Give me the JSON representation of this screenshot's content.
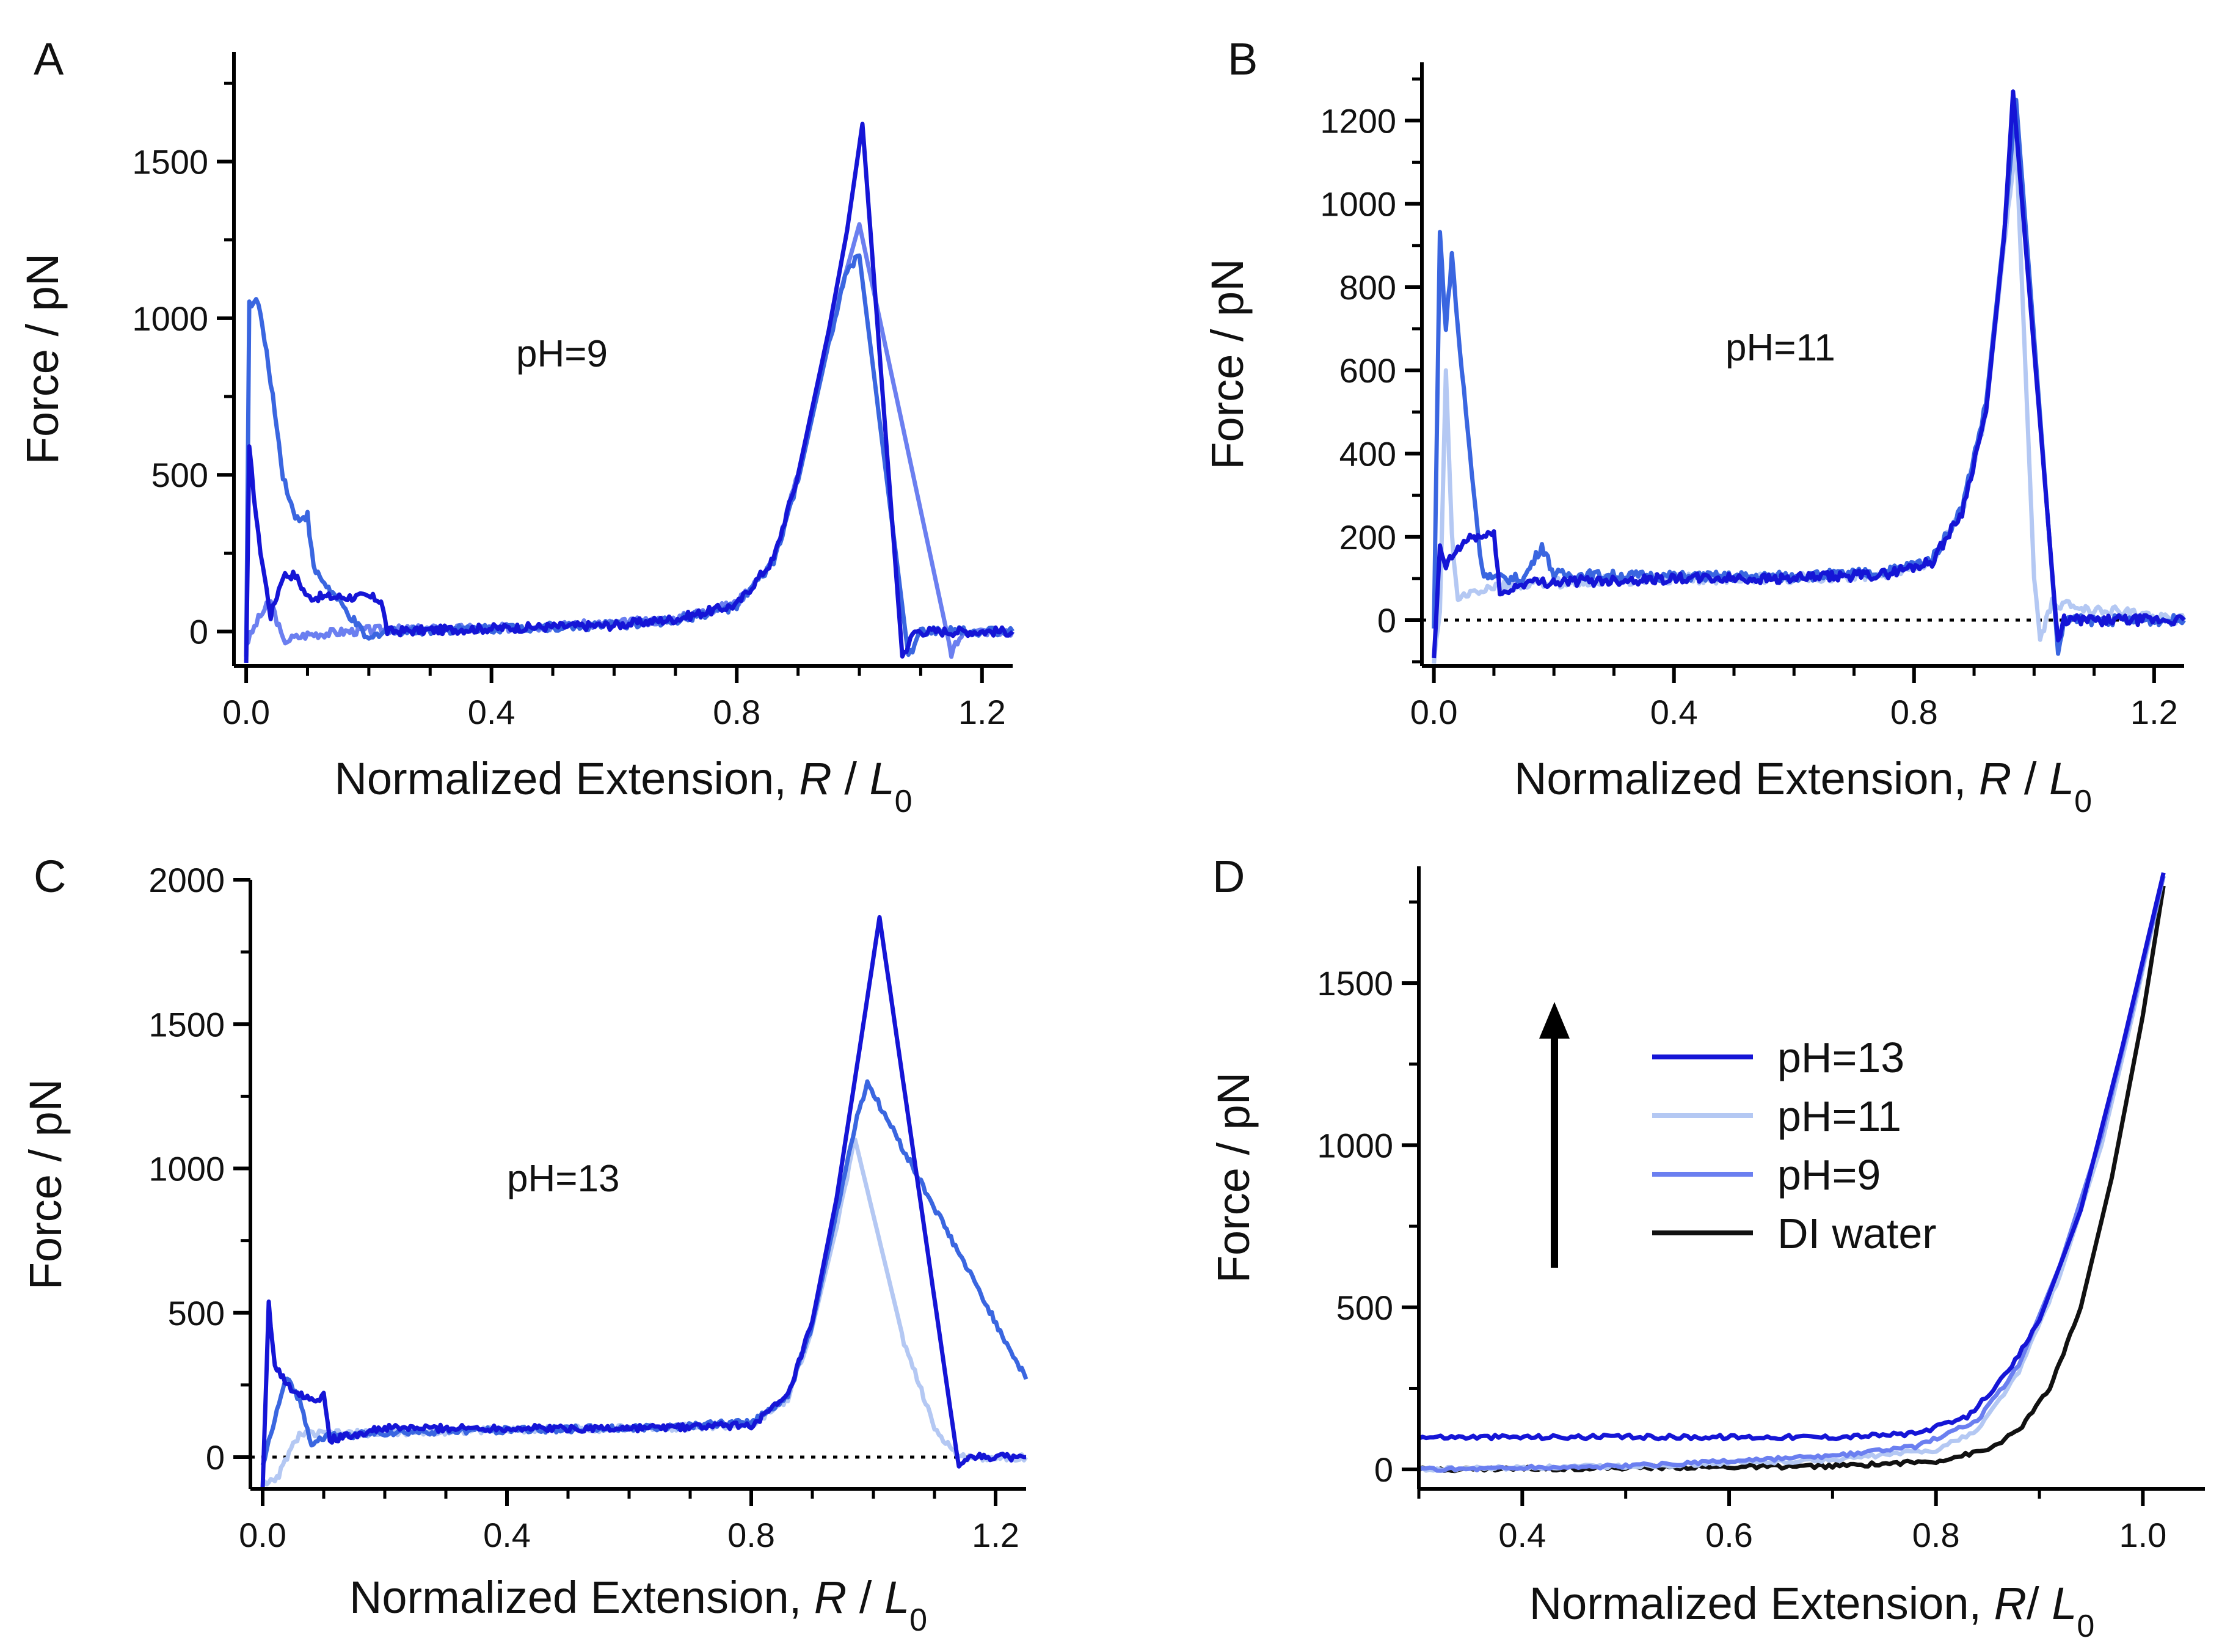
{
  "figure": {
    "colors": {
      "pH13": "#1515d6",
      "pH11": "#b4c8f3",
      "pH9": "#6b7ff0",
      "pH11_mid": "#3a66e0",
      "DI": "#111111",
      "axis": "#000000"
    }
  },
  "chart_data": [
    {
      "panel": "A",
      "type": "line",
      "annotation": "pH=9",
      "xlabel": {
        "main": "Normalized Extension, ",
        "var1": "R",
        "sep": " / ",
        "var2": "L",
        "sub": "0"
      },
      "ylabel": "Force / pN",
      "xlim": [
        -0.02,
        1.25
      ],
      "ylim": [
        -110,
        1850
      ],
      "xticks": [
        0.0,
        0.4,
        0.8,
        1.2
      ],
      "xtick_labels": [
        "0.0",
        "0.4",
        "0.8",
        "1.2"
      ],
      "yticks": [
        0,
        500,
        1000,
        1500
      ],
      "ytick_labels": [
        "0",
        "500",
        "1000",
        "1500"
      ],
      "zero_line": false,
      "series": [
        {
          "name": "trace-1",
          "color": "#6b7ff0",
          "noise": 14,
          "points": [
            [
              0,
              -40
            ],
            [
              0.02,
              40
            ],
            [
              0.04,
              100
            ],
            [
              0.06,
              -30
            ],
            [
              0.1,
              -10
            ],
            [
              0.2,
              5
            ],
            [
              0.4,
              10
            ],
            [
              0.6,
              25
            ],
            [
              0.7,
              40
            ],
            [
              0.8,
              90
            ],
            [
              0.86,
              230
            ],
            [
              0.9,
              500
            ],
            [
              0.95,
              950
            ],
            [
              1.0,
              1300
            ],
            [
              1.15,
              -70
            ],
            [
              1.17,
              0
            ],
            [
              1.25,
              0
            ]
          ]
        },
        {
          "name": "trace-2",
          "color": "#3a66e0",
          "noise": 14,
          "points": [
            [
              0,
              -80
            ],
            [
              0.005,
              1050
            ],
            [
              0.02,
              1050
            ],
            [
              0.04,
              800
            ],
            [
              0.06,
              500
            ],
            [
              0.08,
              360
            ],
            [
              0.1,
              370
            ],
            [
              0.11,
              200
            ],
            [
              0.2,
              -30
            ],
            [
              0.22,
              0
            ],
            [
              0.4,
              10
            ],
            [
              0.6,
              20
            ],
            [
              0.7,
              35
            ],
            [
              0.8,
              80
            ],
            [
              0.86,
              220
            ],
            [
              0.9,
              480
            ],
            [
              0.95,
              920
            ],
            [
              0.98,
              1150
            ],
            [
              1.0,
              1200
            ],
            [
              1.08,
              -80
            ],
            [
              1.1,
              0
            ],
            [
              1.25,
              0
            ]
          ]
        },
        {
          "name": "trace-3",
          "color": "#1515d6",
          "noise": 14,
          "points": [
            [
              0,
              -100
            ],
            [
              0.005,
              580
            ],
            [
              0.02,
              300
            ],
            [
              0.04,
              50
            ],
            [
              0.06,
              180
            ],
            [
              0.08,
              180
            ],
            [
              0.1,
              110
            ],
            [
              0.2,
              110
            ],
            [
              0.22,
              100
            ],
            [
              0.23,
              0
            ],
            [
              0.4,
              10
            ],
            [
              0.6,
              20
            ],
            [
              0.7,
              40
            ],
            [
              0.8,
              85
            ],
            [
              0.86,
              230
            ],
            [
              0.9,
              500
            ],
            [
              0.95,
              960
            ],
            [
              0.98,
              1280
            ],
            [
              1.005,
              1620
            ],
            [
              1.07,
              -80
            ],
            [
              1.09,
              0
            ],
            [
              1.25,
              0
            ]
          ]
        }
      ]
    },
    {
      "panel": "B",
      "type": "line",
      "annotation": "pH=11",
      "xlabel": {
        "main": "Normalized Extension, ",
        "var1": "R",
        "sep": " / ",
        "var2": "L",
        "sub": "0"
      },
      "ylabel": "Force / pN",
      "xlim": [
        -0.02,
        1.25
      ],
      "ylim": [
        -110,
        1340
      ],
      "xticks": [
        0.0,
        0.4,
        0.8,
        1.2
      ],
      "xtick_labels": [
        "0.0",
        "0.4",
        "0.8",
        "1.2"
      ],
      "yticks": [
        0,
        200,
        400,
        600,
        800,
        1000,
        1200
      ],
      "ytick_labels": [
        "0",
        "200",
        "400",
        "600",
        "800",
        "1000",
        "1200"
      ],
      "zero_line": true,
      "series": [
        {
          "name": "trace-1",
          "color": "#b4c8f3",
          "noise": 12,
          "points": [
            [
              0,
              -100
            ],
            [
              0.01,
              20
            ],
            [
              0.02,
              600
            ],
            [
              0.03,
              200
            ],
            [
              0.04,
              40
            ],
            [
              0.05,
              60
            ],
            [
              0.1,
              80
            ],
            [
              0.2,
              90
            ],
            [
              0.4,
              100
            ],
            [
              0.6,
              100
            ],
            [
              0.75,
              110
            ],
            [
              0.83,
              140
            ],
            [
              0.88,
              260
            ],
            [
              0.92,
              500
            ],
            [
              0.95,
              900
            ],
            [
              0.97,
              1150
            ],
            [
              1.0,
              100
            ],
            [
              1.01,
              -50
            ],
            [
              1.03,
              40
            ],
            [
              1.25,
              0
            ]
          ]
        },
        {
          "name": "trace-2",
          "color": "#3a66e0",
          "noise": 12,
          "points": [
            [
              0,
              -20
            ],
            [
              0.01,
              930
            ],
            [
              0.02,
              700
            ],
            [
              0.03,
              880
            ],
            [
              0.04,
              700
            ],
            [
              0.06,
              400
            ],
            [
              0.08,
              120
            ],
            [
              0.1,
              100
            ],
            [
              0.15,
              100
            ],
            [
              0.18,
              180
            ],
            [
              0.2,
              110
            ],
            [
              0.4,
              105
            ],
            [
              0.6,
              105
            ],
            [
              0.75,
              115
            ],
            [
              0.83,
              145
            ],
            [
              0.88,
              270
            ],
            [
              0.92,
              520
            ],
            [
              0.95,
              930
            ],
            [
              0.97,
              1250
            ],
            [
              1.04,
              -80
            ],
            [
              1.05,
              0
            ],
            [
              1.25,
              0
            ]
          ]
        },
        {
          "name": "trace-3",
          "color": "#1515d6",
          "noise": 12,
          "points": [
            [
              0,
              -100
            ],
            [
              0.01,
              170
            ],
            [
              0.02,
              130
            ],
            [
              0.04,
              170
            ],
            [
              0.06,
              200
            ],
            [
              0.09,
              200
            ],
            [
              0.1,
              220
            ],
            [
              0.11,
              60
            ],
            [
              0.15,
              90
            ],
            [
              0.4,
              100
            ],
            [
              0.6,
              100
            ],
            [
              0.75,
              110
            ],
            [
              0.83,
              140
            ],
            [
              0.88,
              260
            ],
            [
              0.92,
              500
            ],
            [
              0.95,
              920
            ],
            [
              0.965,
              1270
            ],
            [
              1.04,
              -60
            ],
            [
              1.05,
              0
            ],
            [
              1.25,
              0
            ]
          ]
        }
      ]
    },
    {
      "panel": "C",
      "type": "line",
      "annotation": "pH=13",
      "xlabel": {
        "main": "Normalized Extension, ",
        "var1": "R",
        "sep": " / ",
        "var2": "L",
        "sub": "0"
      },
      "ylabel": "Force / pN",
      "xlim": [
        -0.02,
        1.25
      ],
      "ylim": [
        -110,
        2000
      ],
      "xticks": [
        0.0,
        0.4,
        0.8,
        1.2
      ],
      "xtick_labels": [
        "0.0",
        "0.4",
        "0.8",
        "1.2"
      ],
      "yticks": [
        0,
        500,
        1000,
        1500,
        2000
      ],
      "ytick_labels": [
        "0",
        "500",
        "1000",
        "1500",
        "2000"
      ],
      "zero_line": true,
      "series": [
        {
          "name": "trace-1",
          "color": "#b4c8f3",
          "noise": 12,
          "points": [
            [
              0,
              -80
            ],
            [
              0.02,
              -90
            ],
            [
              0.04,
              0
            ],
            [
              0.06,
              80
            ],
            [
              0.1,
              80
            ],
            [
              0.2,
              85
            ],
            [
              0.4,
              95
            ],
            [
              0.6,
              100
            ],
            [
              0.8,
              110
            ],
            [
              0.86,
              200
            ],
            [
              0.9,
              450
            ],
            [
              0.94,
              800
            ],
            [
              0.97,
              1100
            ],
            [
              1.05,
              400
            ],
            [
              1.1,
              100
            ],
            [
              1.14,
              0
            ],
            [
              1.25,
              0
            ]
          ]
        },
        {
          "name": "trace-2",
          "color": "#3a66e0",
          "noise": 12,
          "points": [
            [
              0,
              -30
            ],
            [
              0.02,
              130
            ],
            [
              0.04,
              280
            ],
            [
              0.06,
              200
            ],
            [
              0.08,
              50
            ],
            [
              0.1,
              70
            ],
            [
              0.2,
              85
            ],
            [
              0.4,
              95
            ],
            [
              0.6,
              100
            ],
            [
              0.8,
              120
            ],
            [
              0.86,
              210
            ],
            [
              0.9,
              460
            ],
            [
              0.94,
              850
            ],
            [
              0.97,
              1150
            ],
            [
              0.99,
              1300
            ],
            [
              1.25,
              270
            ]
          ]
        },
        {
          "name": "trace-3",
          "color": "#1515d6",
          "noise": 12,
          "points": [
            [
              0,
              -110
            ],
            [
              0.01,
              530
            ],
            [
              0.02,
              320
            ],
            [
              0.04,
              250
            ],
            [
              0.06,
              220
            ],
            [
              0.09,
              200
            ],
            [
              0.1,
              220
            ],
            [
              0.11,
              60
            ],
            [
              0.2,
              100
            ],
            [
              0.4,
              100
            ],
            [
              0.6,
              100
            ],
            [
              0.8,
              110
            ],
            [
              0.86,
              210
            ],
            [
              0.9,
              470
            ],
            [
              0.94,
              900
            ],
            [
              0.98,
              1450
            ],
            [
              1.01,
              1870
            ],
            [
              1.14,
              -40
            ],
            [
              1.16,
              0
            ],
            [
              1.25,
              0
            ]
          ]
        }
      ]
    },
    {
      "panel": "D",
      "type": "line",
      "annotation": "",
      "xlabel": {
        "main": "Normalized Extension, ",
        "var1": "R",
        "sep": "/ ",
        "var2": "L",
        "sub": "0"
      },
      "ylabel": "Force / pN",
      "xlim": [
        0.3,
        1.06
      ],
      "ylim": [
        -60,
        1860
      ],
      "xticks": [
        0.4,
        0.6,
        0.8,
        1.0
      ],
      "xtick_labels": [
        "0.4",
        "0.6",
        "0.8",
        "1.0"
      ],
      "yticks": [
        0,
        500,
        1000,
        1500
      ],
      "ytick_labels": [
        "0",
        "500",
        "1000",
        "1500"
      ],
      "zero_line": false,
      "legend": [
        "pH=13",
        "pH=11",
        "pH=9",
        "DI water"
      ],
      "arrow": "up",
      "series": [
        {
          "name": "DI water",
          "color": "#111111",
          "noise": 6,
          "points": [
            [
              0.3,
              0
            ],
            [
              0.5,
              5
            ],
            [
              0.7,
              10
            ],
            [
              0.8,
              25
            ],
            [
              0.85,
              60
            ],
            [
              0.88,
              120
            ],
            [
              0.91,
              250
            ],
            [
              0.94,
              500
            ],
            [
              0.97,
              900
            ],
            [
              1.0,
              1400
            ],
            [
              1.02,
              1800
            ]
          ]
        },
        {
          "name": "pH=11",
          "color": "#b4c8f3",
          "noise": 6,
          "points": [
            [
              0.3,
              0
            ],
            [
              0.5,
              10
            ],
            [
              0.7,
              30
            ],
            [
              0.8,
              60
            ],
            [
              0.84,
              120
            ],
            [
              0.88,
              300
            ],
            [
              0.92,
              600
            ],
            [
              0.96,
              1000
            ],
            [
              0.99,
              1400
            ],
            [
              1.02,
              1830
            ]
          ]
        },
        {
          "name": "pH=9",
          "color": "#6b7ff0",
          "noise": 6,
          "points": [
            [
              0.3,
              0
            ],
            [
              0.5,
              10
            ],
            [
              0.7,
              40
            ],
            [
              0.78,
              70
            ],
            [
              0.84,
              150
            ],
            [
              0.88,
              320
            ],
            [
              0.92,
              630
            ],
            [
              0.96,
              1030
            ],
            [
              0.99,
              1420
            ],
            [
              1.02,
              1830
            ]
          ]
        },
        {
          "name": "pH=13",
          "color": "#1515d6",
          "noise": 7,
          "points": [
            [
              0.3,
              100
            ],
            [
              0.5,
              100
            ],
            [
              0.7,
              100
            ],
            [
              0.78,
              110
            ],
            [
              0.83,
              160
            ],
            [
              0.87,
              300
            ],
            [
              0.9,
              460
            ],
            [
              0.94,
              800
            ],
            [
              0.98,
              1300
            ],
            [
              1.02,
              1840
            ]
          ]
        }
      ]
    }
  ]
}
